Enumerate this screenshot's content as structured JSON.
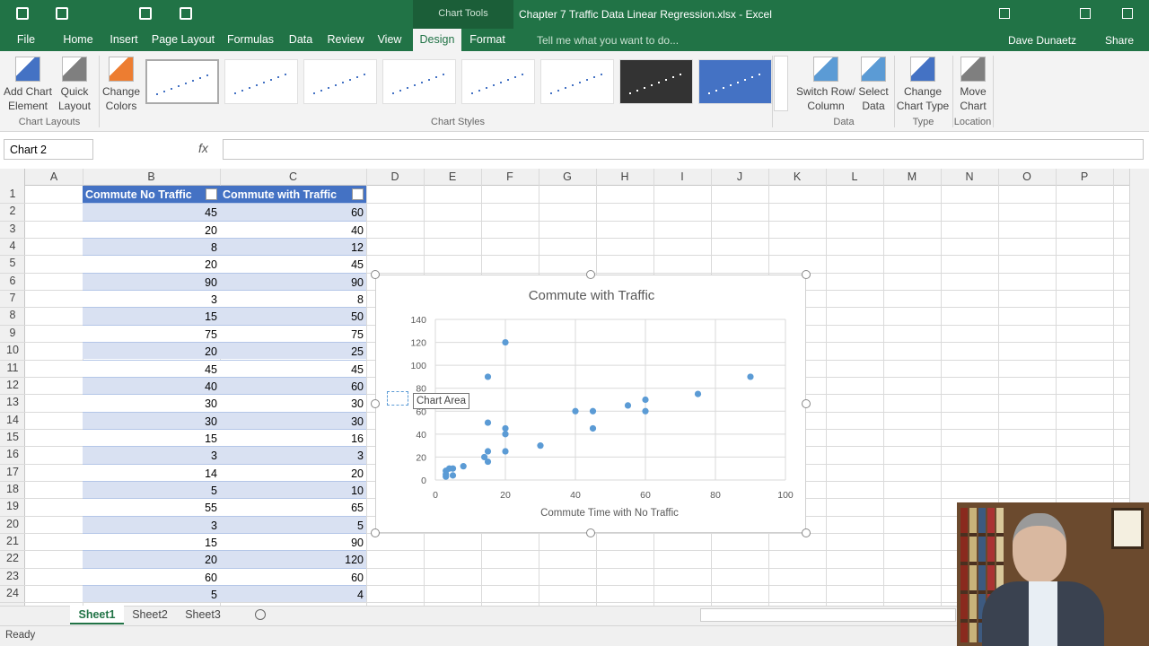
{
  "window": {
    "chart_tools": "Chart Tools",
    "title": "Chapter 7 Traffic Data Linear Regression.xlsx - Excel",
    "user": "Dave Dunaetz",
    "share": "Share"
  },
  "tabs": [
    "File",
    "Home",
    "Insert",
    "Page Layout",
    "Formulas",
    "Data",
    "Review",
    "View",
    "Design",
    "Format"
  ],
  "tell_me": "Tell me what you want to do...",
  "ribbon": {
    "buttons": [
      [
        "Add Chart",
        "Element"
      ],
      [
        "Quick",
        "Layout"
      ],
      [
        "Change",
        "Colors"
      ],
      [
        "Switch Row/",
        "Column"
      ],
      [
        "Select",
        "Data"
      ],
      [
        "Change",
        "Chart Type"
      ],
      [
        "Move",
        "Chart"
      ]
    ],
    "groups": [
      "Chart Layouts",
      "Chart Styles",
      "Data",
      "Type",
      "Location"
    ]
  },
  "name_box": "Chart 2",
  "fx": "fx",
  "columns": [
    "A",
    "B",
    "C",
    "D",
    "E",
    "F",
    "G",
    "H",
    "I",
    "J",
    "K",
    "L",
    "M",
    "N",
    "O",
    "P"
  ],
  "row_numbers": [
    1,
    2,
    3,
    4,
    5,
    6,
    7,
    8,
    9,
    10,
    11,
    12,
    13,
    14,
    15,
    16,
    17,
    18,
    19,
    20,
    21,
    22,
    23,
    24
  ],
  "table": {
    "header": [
      "Commute No Traffic",
      "Commute with Traffic"
    ],
    "rows": [
      [
        45,
        60
      ],
      [
        20,
        40
      ],
      [
        8,
        12
      ],
      [
        20,
        45
      ],
      [
        90,
        90
      ],
      [
        3,
        8
      ],
      [
        15,
        50
      ],
      [
        75,
        75
      ],
      [
        20,
        25
      ],
      [
        45,
        45
      ],
      [
        40,
        60
      ],
      [
        30,
        30
      ],
      [
        30,
        30
      ],
      [
        15,
        16
      ],
      [
        3,
        3
      ],
      [
        14,
        20
      ],
      [
        5,
        10
      ],
      [
        55,
        65
      ],
      [
        3,
        5
      ],
      [
        15,
        90
      ],
      [
        20,
        120
      ],
      [
        60,
        60
      ],
      [
        5,
        4
      ]
    ]
  },
  "tooltip": "Chart Area",
  "sheets": [
    "Sheet1",
    "Sheet2",
    "Sheet3"
  ],
  "status": "Ready",
  "chart_data": {
    "type": "scatter",
    "title": "Commute with Traffic",
    "xlabel": "Commute Time with No Traffic",
    "x": [
      3,
      3,
      3,
      4,
      5,
      5,
      8,
      14,
      15,
      15,
      15,
      15,
      20,
      20,
      20,
      20,
      30,
      40,
      45,
      45,
      55,
      60,
      60,
      75,
      90
    ],
    "values": [
      3,
      5,
      8,
      10,
      4,
      10,
      12,
      20,
      16,
      25,
      50,
      90,
      40,
      45,
      25,
      120,
      30,
      60,
      60,
      45,
      65,
      70,
      60,
      75,
      90
    ],
    "color": "#5b9bd5",
    "xlim": [
      0,
      100
    ],
    "xticks": [
      0,
      20,
      40,
      60,
      80,
      100
    ],
    "ylim": [
      0,
      140
    ],
    "yticks": [
      0,
      20,
      40,
      60,
      80,
      100,
      120,
      140
    ],
    "grid": true
  }
}
